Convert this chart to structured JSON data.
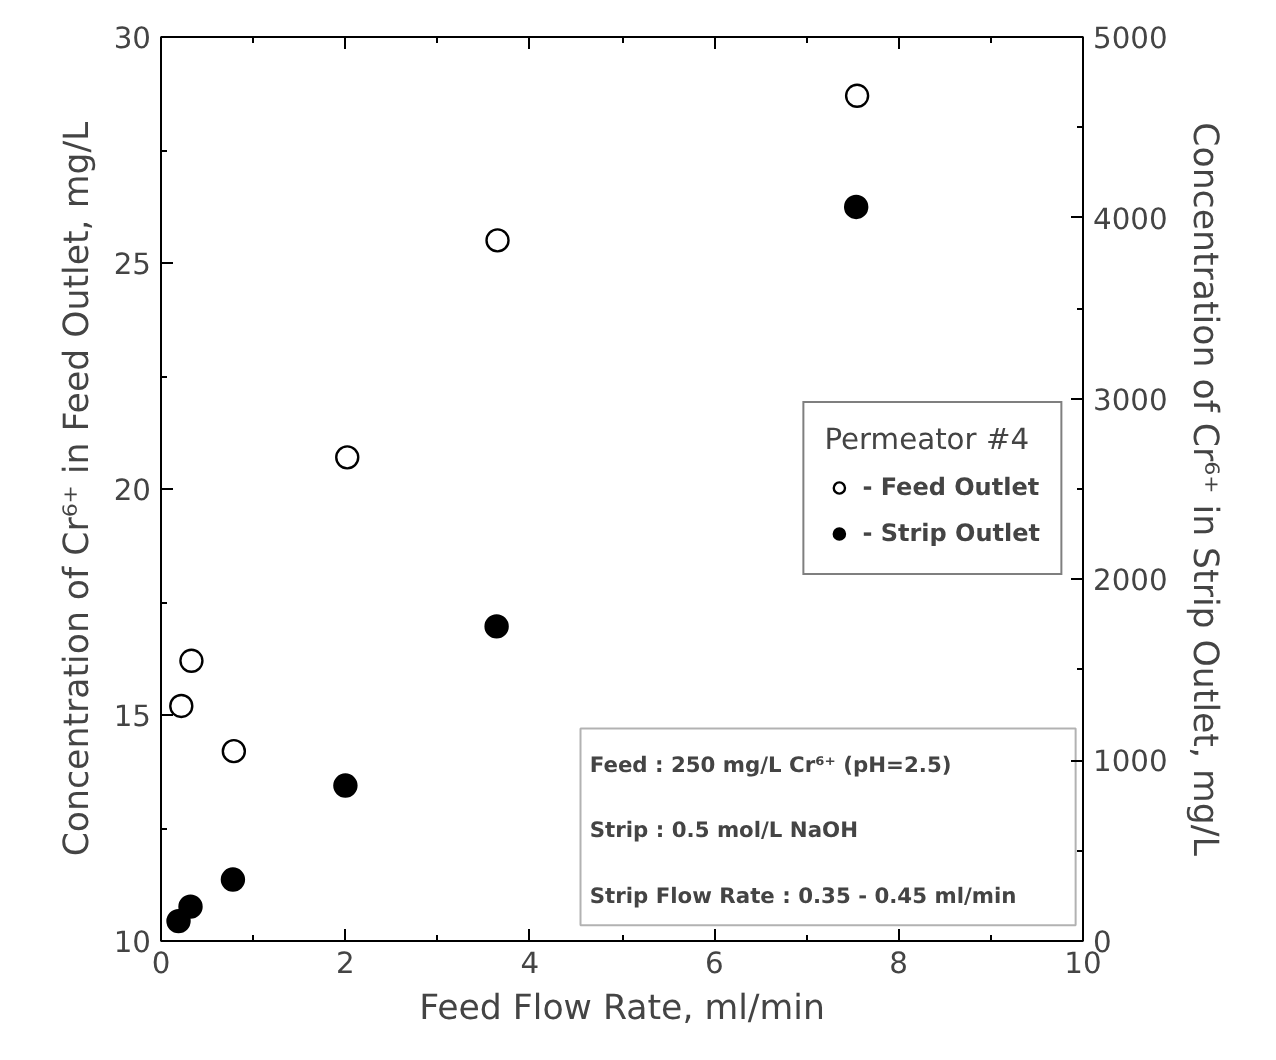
{
  "chart_data": {
    "type": "scatter",
    "xlabel": "Feed Flow Rate, ml/min",
    "ylabel": "Concentration of Cr⁶⁺ in Feed Outlet, mg/L",
    "y2label": "Concentration of Cr⁶⁺ in Strip Outlet, mg/L",
    "legend_title": "Permeator #4",
    "series": [
      {
        "name": "- Feed Outlet",
        "color": "#ffffff",
        "x": [
          0.22,
          0.33,
          0.79,
          2.02,
          3.65,
          7.55
        ],
        "values": [
          15.2,
          16.2,
          14.2,
          20.7,
          25.5,
          28.7
        ]
      },
      {
        "name": "- Strip Outlet",
        "color": "#000000",
        "axis": "y2",
        "x": [
          0.19,
          0.32,
          0.78,
          2.0,
          3.64,
          7.54
        ],
        "values": [
          110,
          190,
          340,
          860,
          1740,
          4060
        ]
      }
    ],
    "xlim": [
      0,
      10
    ],
    "xticks": [
      0,
      2,
      4,
      6,
      8,
      10
    ],
    "ylim": [
      10,
      30
    ],
    "yticks": [
      10,
      15,
      20,
      25,
      30
    ],
    "y2lim": [
      0,
      5000
    ],
    "y2ticks": [
      0,
      1000,
      2000,
      3000,
      4000,
      5000
    ],
    "legend": "right",
    "marker": "circle",
    "grid": false,
    "annotations": [
      "Feed : 250 mg/L Cr⁶⁺  (pH=2.5)",
      "Strip : 0.5 mol/L NaOH",
      "Strip Flow Rate : 0.35 - 0.45 ml/min"
    ]
  }
}
